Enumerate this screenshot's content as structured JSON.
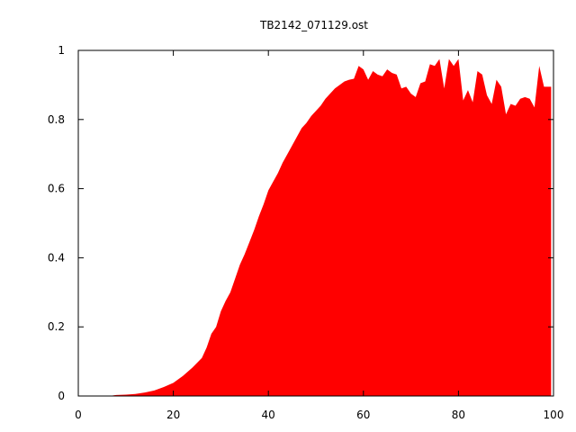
{
  "chart_data": {
    "type": "area",
    "title": "TB2142_071129.ost",
    "xlabel": "",
    "ylabel": "",
    "xlim": [
      0,
      100
    ],
    "ylim": [
      0,
      1
    ],
    "xticks": [
      0,
      20,
      40,
      60,
      80,
      100
    ],
    "yticks": [
      0,
      0.2,
      0.4,
      0.6,
      0.8,
      1
    ],
    "xtick_labels": [
      "0",
      "20",
      "40",
      "60",
      "80",
      "100"
    ],
    "ytick_labels": [
      "0",
      "0.2",
      "0.4",
      "0.6",
      "0.8",
      "1"
    ],
    "grid": false,
    "legend": "none",
    "fill_color": "#ff0000",
    "series": [
      {
        "x": [
          7,
          8,
          10,
          12,
          14,
          16,
          18,
          20,
          22,
          24,
          26,
          27,
          28,
          29,
          30,
          31,
          32,
          33,
          34,
          35,
          36,
          37,
          38,
          39,
          40,
          41,
          42,
          43,
          44,
          45,
          46,
          47,
          48,
          49,
          50,
          51,
          52,
          53,
          54,
          55,
          56,
          57,
          58,
          59,
          60,
          61,
          62,
          63,
          64,
          65,
          66,
          67,
          68,
          69,
          70,
          71,
          72,
          73,
          74,
          75,
          76,
          77,
          78,
          79,
          80,
          81,
          82,
          83,
          84,
          85,
          86,
          87,
          88,
          89,
          90,
          91,
          92,
          93,
          94,
          95,
          96,
          97,
          98,
          99,
          99.5
        ],
        "y": [
          0.001,
          0.003,
          0.004,
          0.006,
          0.01,
          0.016,
          0.026,
          0.038,
          0.058,
          0.082,
          0.11,
          0.14,
          0.18,
          0.2,
          0.245,
          0.275,
          0.3,
          0.34,
          0.38,
          0.41,
          0.445,
          0.48,
          0.52,
          0.555,
          0.595,
          0.62,
          0.645,
          0.675,
          0.7,
          0.725,
          0.75,
          0.775,
          0.79,
          0.81,
          0.825,
          0.84,
          0.86,
          0.875,
          0.89,
          0.9,
          0.91,
          0.915,
          0.918,
          0.955,
          0.945,
          0.915,
          0.94,
          0.93,
          0.925,
          0.945,
          0.935,
          0.93,
          0.89,
          0.895,
          0.875,
          0.865,
          0.905,
          0.91,
          0.96,
          0.955,
          0.975,
          0.89,
          0.975,
          0.955,
          0.975,
          0.855,
          0.885,
          0.85,
          0.94,
          0.93,
          0.87,
          0.845,
          0.915,
          0.895,
          0.815,
          0.845,
          0.84,
          0.86,
          0.865,
          0.86,
          0.835,
          0.955,
          0.895,
          0.895,
          0.895
        ]
      }
    ]
  }
}
